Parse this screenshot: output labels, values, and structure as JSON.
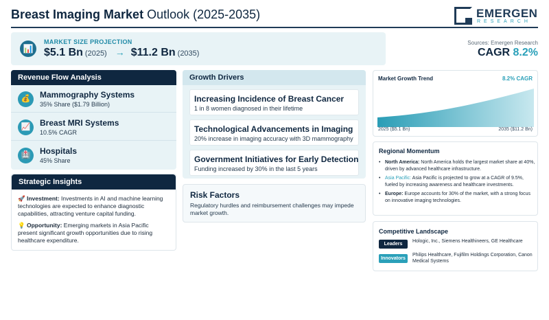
{
  "header": {
    "title_bold": "Breast Imaging Market",
    "title_rest": " Outlook (2025-2035)",
    "logo_word": "EMERGEN",
    "logo_sub": "RESEARCH"
  },
  "projection": {
    "label": "MARKET SIZE PROJECTION",
    "start_value": "$5.1 Bn",
    "start_year": "(2025)",
    "arrow": "→",
    "end_value": "$11.2 Bn",
    "end_year": "(2035)"
  },
  "sources": {
    "text": "Sources: Emergen Research",
    "cagr_label": "CAGR",
    "cagr_value": "8.2%"
  },
  "revenue": {
    "title": "Revenue Flow Analysis",
    "items": [
      {
        "icon": "money-bag-icon",
        "glyph": "💰",
        "title": "Mammography Systems",
        "sub": "35% Share ($1.79 Billion)"
      },
      {
        "icon": "trend-chart-icon",
        "glyph": "📈",
        "title": "Breast MRI Systems",
        "sub": "10.5% CAGR"
      },
      {
        "icon": "hospital-icon",
        "glyph": "🏥",
        "title": "Hospitals",
        "sub": "45% Share"
      }
    ]
  },
  "strategic": {
    "title": "Strategic Insights",
    "investment_label": "Investment:",
    "investment_text": " Investments in AI and machine learning technologies are expected to enhance diagnostic capabilities, attracting venture capital funding.",
    "opportunity_label": "Opportunity:",
    "opportunity_text": " Emerging markets in Asia Pacific present significant growth opportunities due to rising healthcare expenditure."
  },
  "growth": {
    "title": "Growth Drivers",
    "drivers": [
      {
        "title": "Increasing Incidence of Breast Cancer",
        "sub": "1 in 8 women diagnosed in their lifetime"
      },
      {
        "title": "Technological Advancements in Imaging",
        "sub": "20% increase in imaging accuracy with 3D mammography"
      },
      {
        "title": "Government Initiatives for Early Detection",
        "sub": "Funding increased by 30% in the last 5 years"
      }
    ]
  },
  "risk": {
    "title": "Risk Factors",
    "text": "Regulatory hurdles and reimbursement challenges may impede market growth."
  },
  "trend": {
    "title": "Market Growth Trend",
    "cagr": "8.2% CAGR",
    "start_label": "2025 ($5.1 Bn)",
    "end_label": "2035 ($11.2 Bn)"
  },
  "regional": {
    "title": "Regional Momentum",
    "na_label": "North America:",
    "na_text": " North America holds the largest market share at 40%, driven by advanced healthcare infrastructure.",
    "ap_label": "Asia Pacific:",
    "ap_text": " Asia Pacific is projected to grow at a CAGR of 9.5%, fueled by increasing awareness and healthcare investments.",
    "eu_label": "Europe:",
    "eu_text": " Europe accounts for 30% of the market, with a strong focus on innovative imaging technologies."
  },
  "competitive": {
    "title": "Competitive Landscape",
    "leaders_tag": "Leaders",
    "leaders": "Hologic, Inc., Siemens Healthineers, GE Healthcare",
    "innovators_tag": "Innovators",
    "innovators": "Philips Healthcare, Fujifilm Holdings Corporation, Canon Medical Systems"
  },
  "colors": {
    "navy": "#0f2740",
    "accent": "#2aa0b9",
    "panel": "#e8f3f6"
  }
}
